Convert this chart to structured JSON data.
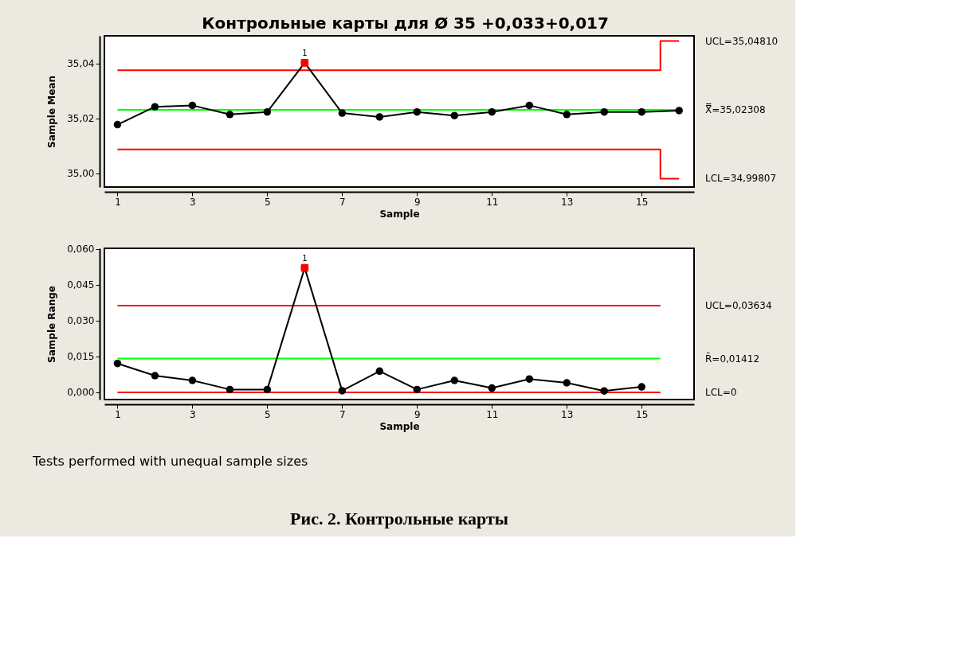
{
  "chart_data": [
    {
      "type": "line",
      "title": "Контрольные карты для Ø 35 +0,033+0,017",
      "xlabel": "Sample",
      "ylabel": "Sample Mean",
      "x": [
        1,
        2,
        3,
        4,
        5,
        6,
        7,
        8,
        9,
        10,
        11,
        12,
        13,
        14,
        15,
        16
      ],
      "xlim": [
        0.65,
        16.4
      ],
      "xticks": [
        1,
        3,
        5,
        7,
        9,
        11,
        13,
        15
      ],
      "ylim": [
        34.995,
        35.05
      ],
      "yticks": [
        {
          "value": 35.0,
          "label": "35,00"
        },
        {
          "value": 35.02,
          "label": "35,02"
        },
        {
          "value": 35.04,
          "label": "35,04"
        }
      ],
      "series": [
        {
          "name": "UCL=35,04810",
          "color": "#ff0000",
          "marker": "none",
          "x": [
            1,
            15.5,
            15.5,
            16
          ],
          "values": [
            35.0375,
            35.0375,
            35.0481,
            35.0481
          ]
        },
        {
          "name": "X̿=35,02308",
          "color": "#00ff00",
          "marker": "none",
          "x": [
            1,
            16
          ],
          "values": [
            35.02308,
            35.02308
          ]
        },
        {
          "name": "LCL=34,99807",
          "color": "#ff0000",
          "marker": "none",
          "x": [
            1,
            15.5,
            15.5,
            16
          ],
          "values": [
            35.0087,
            35.0087,
            34.99807,
            34.99807
          ]
        },
        {
          "color": "#000000",
          "marker": "circle",
          "values": [
            35.0177,
            35.0242,
            35.0247,
            35.0214,
            35.0223,
            35.0402,
            35.0219,
            35.0205,
            35.0223,
            35.021,
            35.0223,
            35.0247,
            35.0214,
            35.0223,
            35.0223,
            35.0228
          ]
        },
        {
          "type": "scatter",
          "color": "#ff0000",
          "marker": "square",
          "x": [
            6
          ],
          "values": [
            35.0402
          ]
        }
      ],
      "annotations": [
        {
          "text": "1",
          "x": 6,
          "y": 35.0402
        }
      ]
    },
    {
      "type": "line",
      "xlabel": "Sample",
      "ylabel": "Sample Range",
      "x": [
        1,
        2,
        3,
        4,
        5,
        6,
        7,
        8,
        9,
        10,
        11,
        12,
        13,
        14,
        15
      ],
      "xlim": [
        0.65,
        16.4
      ],
      "xticks": [
        1,
        3,
        5,
        7,
        9,
        11,
        13,
        15
      ],
      "ylim": [
        -0.003,
        0.0603
      ],
      "yticks": [
        {
          "value": 0,
          "label": "0,000"
        },
        {
          "value": 0.015,
          "label": "0,015"
        },
        {
          "value": 0.03,
          "label": "0,030"
        },
        {
          "value": 0.045,
          "label": "0,045"
        },
        {
          "value": 0.06,
          "label": "0,060"
        }
      ],
      "series": [
        {
          "name": "UCL=0,03634",
          "color": "#ff0000",
          "marker": "none",
          "x": [
            1,
            15.5
          ],
          "values": [
            0.03634,
            0.03634
          ]
        },
        {
          "name": "R̄=0,01412",
          "color": "#00ff00",
          "marker": "none",
          "x": [
            1,
            15.5
          ],
          "values": [
            0.01412,
            0.01412
          ]
        },
        {
          "name": "LCL=0",
          "color": "#ff0000",
          "marker": "none",
          "x": [
            1,
            15.5
          ],
          "values": [
            0,
            0
          ]
        },
        {
          "color": "#000000",
          "marker": "circle",
          "values": [
            0.0121,
            0.007,
            0.005,
            0.0012,
            0.0012,
            0.0521,
            0.0007,
            0.0089,
            0.0012,
            0.005,
            0.0018,
            0.0056,
            0.004,
            0.0006,
            0.0023
          ]
        },
        {
          "type": "scatter",
          "color": "#ff0000",
          "marker": "square",
          "x": [
            6
          ],
          "values": [
            0.0521
          ]
        }
      ],
      "annotations": [
        {
          "text": "1",
          "x": 6,
          "y": 0.0521
        },
        "Tests performed with unequal sample sizes",
        "Рис. 2. Контрольные карты"
      ]
    }
  ]
}
